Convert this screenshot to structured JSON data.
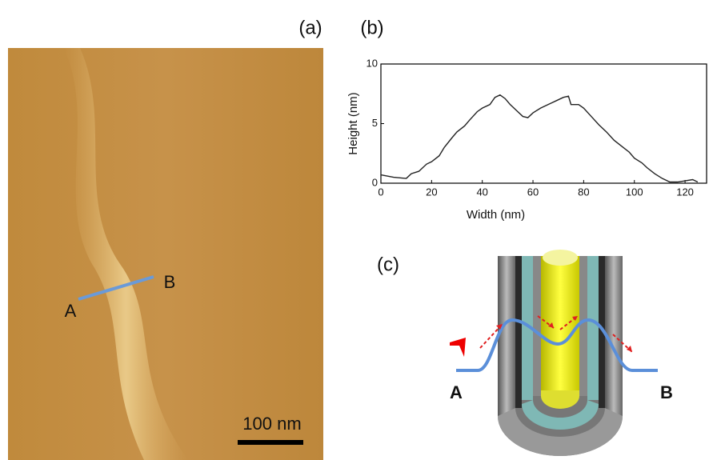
{
  "panel_a": {
    "label": "(a)",
    "point_a": "A",
    "point_b": "B",
    "scale_bar": "100 nm"
  },
  "chart_data": {
    "type": "line",
    "label": "(b)",
    "x_label": "Width (nm)",
    "y_label": "Height (nm)",
    "x": [
      0,
      5,
      10,
      12,
      15,
      18,
      20,
      23,
      25,
      28,
      30,
      33,
      35,
      38,
      40,
      43,
      45,
      47,
      49,
      51,
      54,
      56,
      58,
      60,
      63,
      66,
      69,
      72,
      74,
      75,
      78,
      80,
      83,
      86,
      89,
      92,
      95,
      98,
      100,
      103,
      105,
      108,
      111,
      114,
      117,
      120,
      123,
      125
    ],
    "series": [
      {
        "color": "#222222",
        "values": [
          0.7,
          0.5,
          0.4,
          0.8,
          1.0,
          1.6,
          1.8,
          2.3,
          3.0,
          3.8,
          4.3,
          4.8,
          5.3,
          6.0,
          6.3,
          6.6,
          7.2,
          7.4,
          7.1,
          6.6,
          6.0,
          5.6,
          5.5,
          5.9,
          6.3,
          6.6,
          6.9,
          7.2,
          7.3,
          6.6,
          6.6,
          6.3,
          5.6,
          4.9,
          4.3,
          3.6,
          3.1,
          2.6,
          2.1,
          1.7,
          1.3,
          0.8,
          0.4,
          0.1,
          0.1,
          0.2,
          0.3,
          0.1
        ]
      }
    ],
    "xlim": [
      0,
      128.5
    ],
    "ylim": [
      0,
      10
    ],
    "xticks": [
      0,
      20,
      40,
      60,
      80,
      100,
      120
    ],
    "yticks": [
      0,
      5,
      10
    ]
  },
  "panel_c": {
    "label": "(c)",
    "point_a": "A",
    "point_b": "B"
  }
}
